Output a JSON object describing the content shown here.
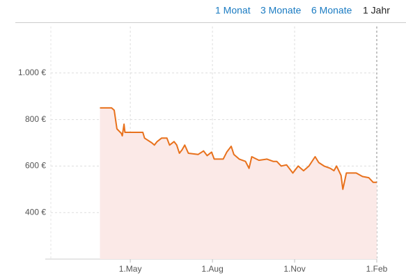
{
  "range_buttons": [
    "1 Monat",
    "3 Monate",
    "6 Monate",
    "1 Jahr"
  ],
  "active_range": 3,
  "chart_data": {
    "type": "area",
    "color": "#e8711c",
    "fill": "#fbe9e7",
    "grid": true,
    "xlim": [
      0,
      365
    ],
    "ylim": [
      200,
      1200
    ],
    "xticks": [
      {
        "value": 89,
        "label": "1.May"
      },
      {
        "value": 181,
        "label": "1.Aug"
      },
      {
        "value": 273,
        "label": "1.Nov"
      },
      {
        "value": 365,
        "label": "1.Feb"
      }
    ],
    "yticks": [
      {
        "value": 400,
        "label": "400 €"
      },
      {
        "value": 600,
        "label": "600 €"
      },
      {
        "value": 800,
        "label": "800 €"
      },
      {
        "value": 1000,
        "label": "1.000 €"
      }
    ],
    "x": [
      55,
      68,
      71,
      74,
      79,
      80,
      82,
      83,
      103,
      105,
      113,
      116,
      119,
      124,
      130,
      133,
      138,
      141,
      144,
      147,
      150,
      154,
      165,
      171,
      175,
      180,
      183,
      193,
      197,
      202,
      205,
      211,
      218,
      222,
      225,
      233,
      242,
      249,
      253,
      258,
      264,
      271,
      277,
      283,
      289,
      296,
      300,
      306,
      313,
      317,
      320,
      325,
      327,
      331,
      342,
      349,
      356,
      361,
      365
    ],
    "values": [
      850,
      850,
      840,
      760,
      740,
      730,
      780,
      745,
      745,
      720,
      700,
      690,
      705,
      720,
      720,
      690,
      705,
      690,
      655,
      670,
      690,
      655,
      650,
      665,
      645,
      660,
      630,
      630,
      660,
      685,
      650,
      630,
      620,
      590,
      640,
      625,
      630,
      620,
      620,
      600,
      605,
      570,
      600,
      580,
      600,
      640,
      615,
      600,
      590,
      580,
      600,
      560,
      500,
      570,
      570,
      555,
      550,
      530,
      530
    ]
  }
}
